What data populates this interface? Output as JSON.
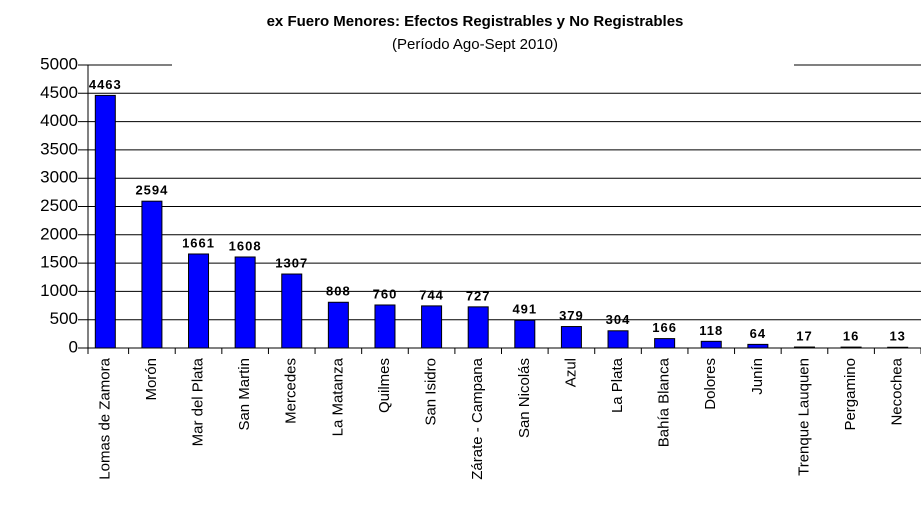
{
  "chart_data": {
    "type": "bar",
    "title": "ex Fuero Menores: Efectos Registrables y No Registrables",
    "subtitle": "(Período Ago-Sept 2010)",
    "categories": [
      "Lomas de Zamora",
      "Morón",
      "Mar del Plata",
      "San Martin",
      "Mercedes",
      "La Matanza",
      "Quilmes",
      "San Isidro",
      "Zárate - Campana",
      "San Nicolás",
      "Azul",
      "La Plata",
      "Bahía Blanca",
      "Dolores",
      "Junín",
      "Trenque Lauquen",
      "Pergamino",
      "Necochea"
    ],
    "values": [
      4463,
      2594,
      1661,
      1608,
      1307,
      808,
      760,
      744,
      727,
      491,
      379,
      304,
      166,
      118,
      64,
      17,
      16,
      13
    ],
    "color": "#0000ff",
    "ylim": [
      0,
      5000
    ],
    "yticks": [
      0,
      500,
      1000,
      1500,
      2000,
      2500,
      3000,
      3500,
      4000,
      4500,
      5000
    ],
    "grid": true
  }
}
